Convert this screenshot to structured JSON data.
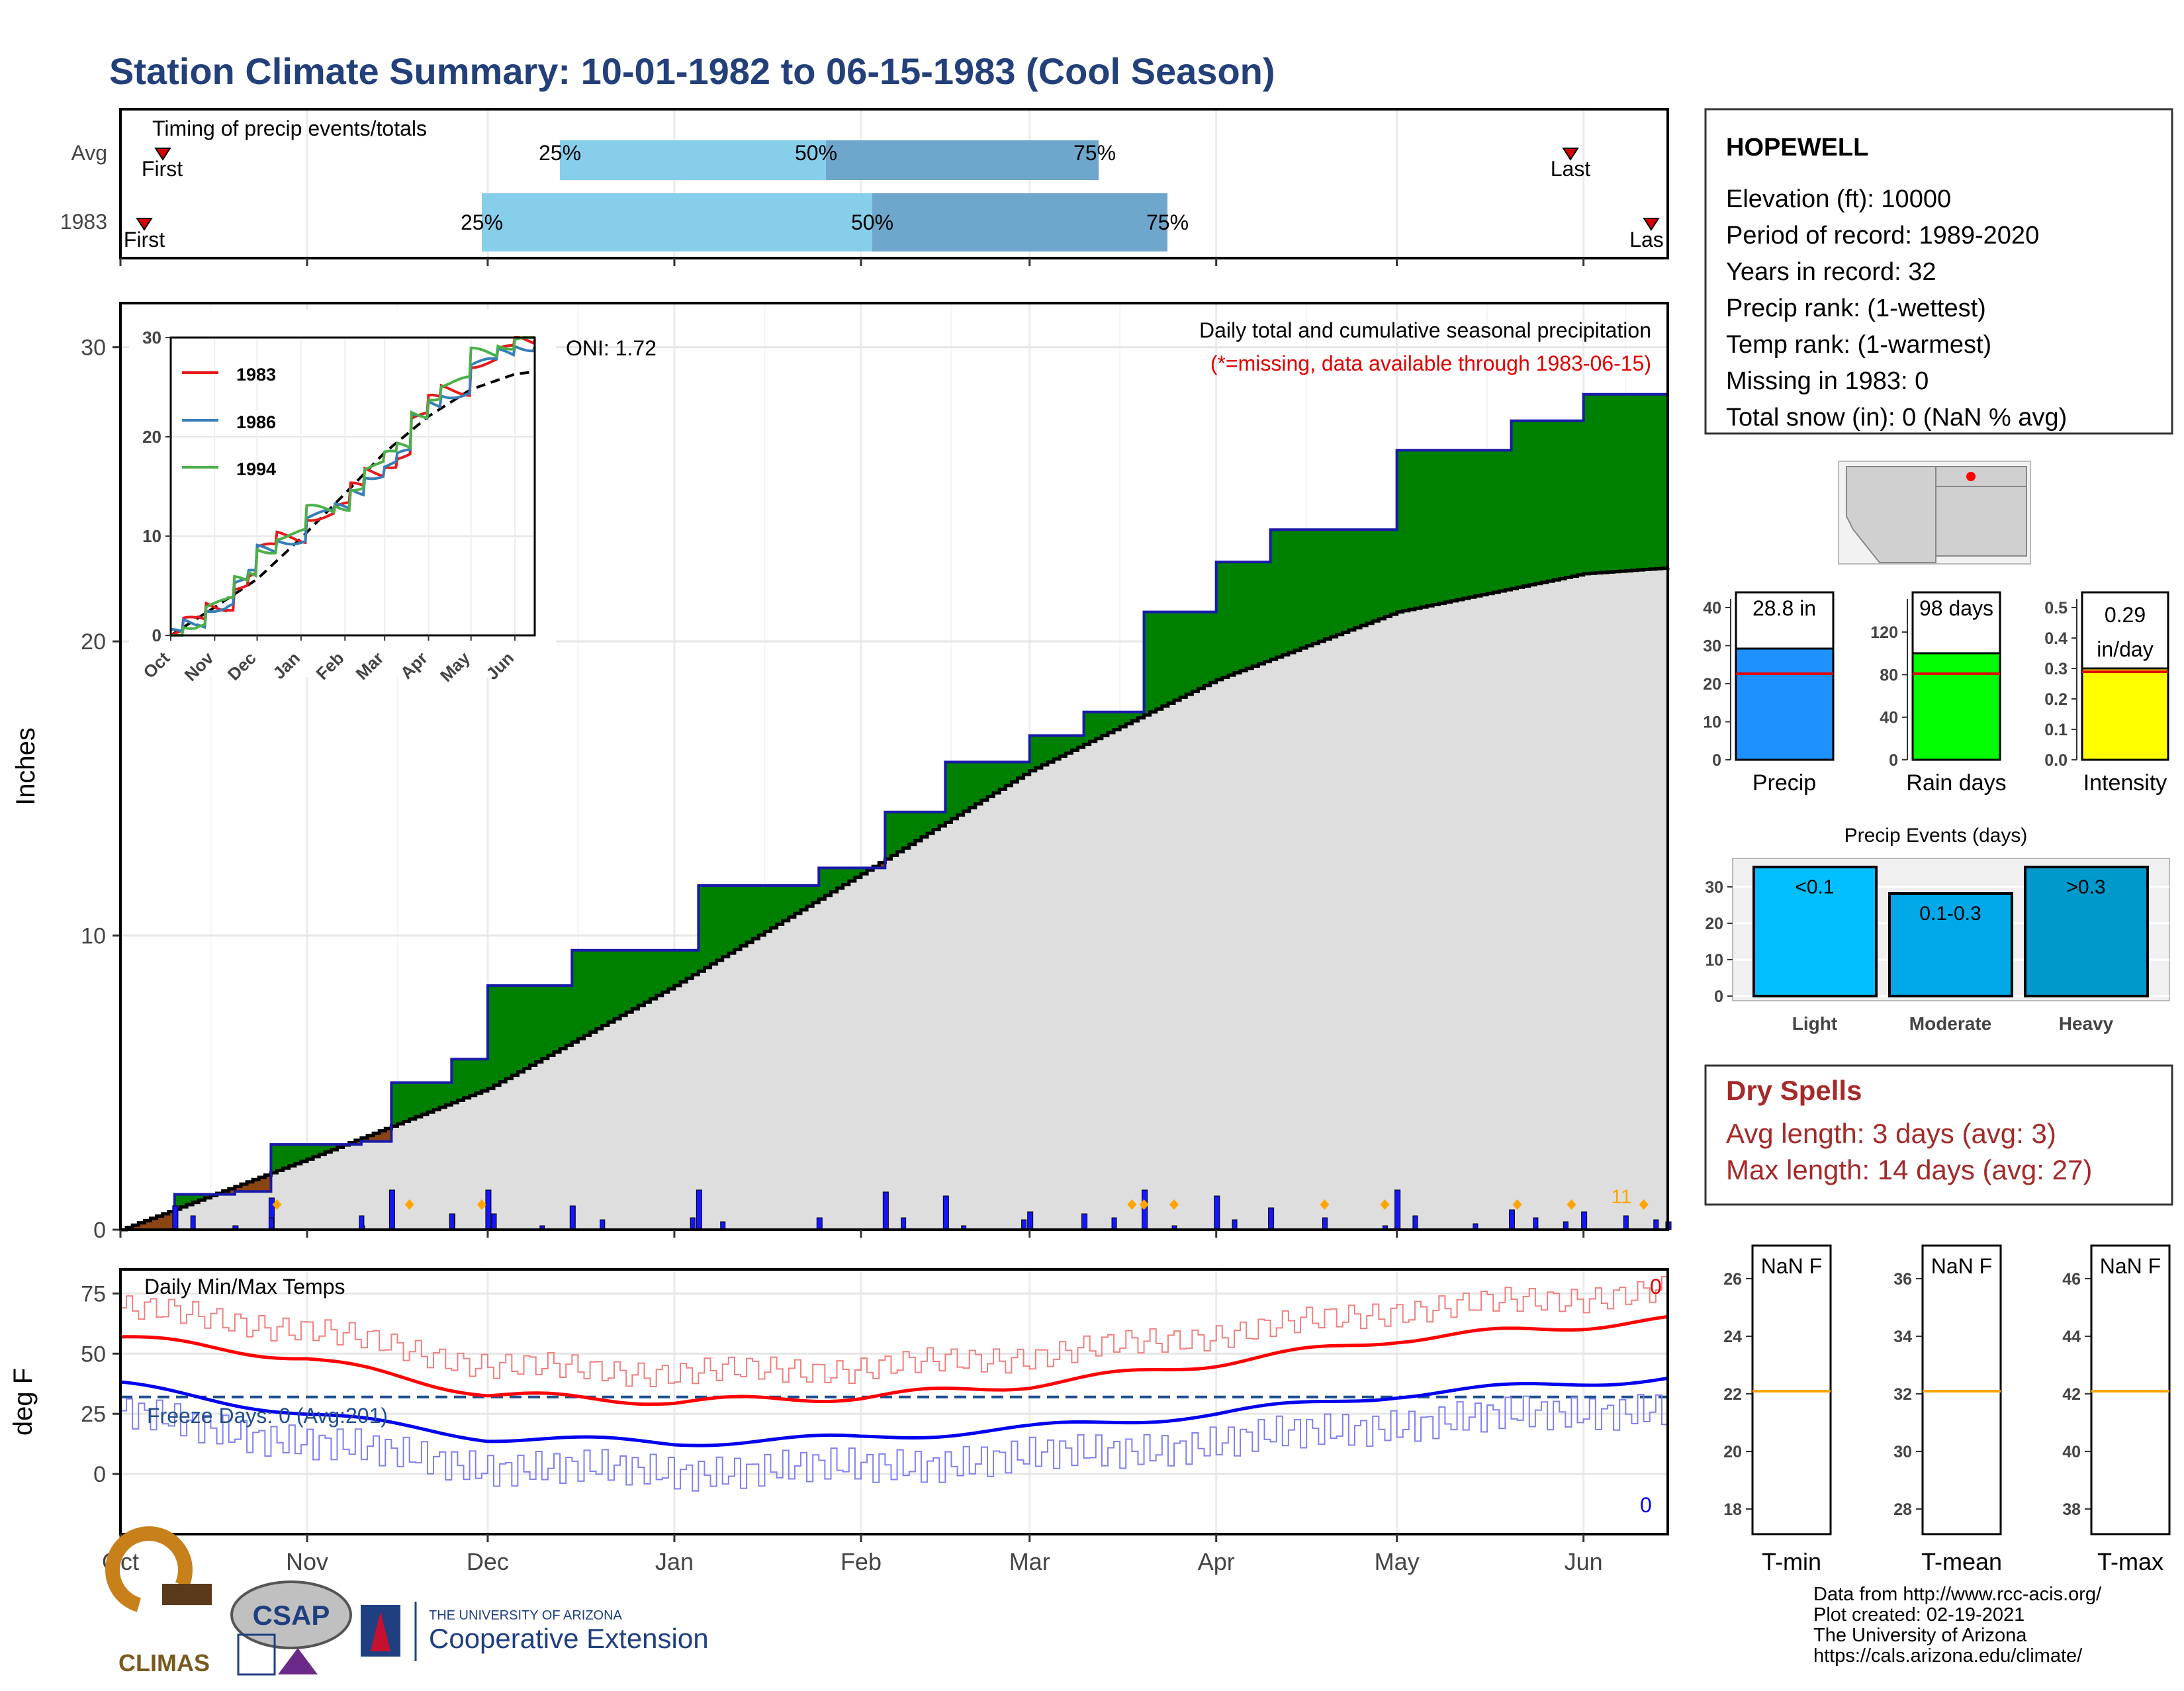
{
  "page": {
    "title": "Station Climate Summary: 10-01-1982 to 06-15-1983 (Cool Season)"
  },
  "timing_panel": {
    "title": "Timing of precip events/totals",
    "row_labels": [
      "Avg",
      "1983"
    ],
    "avg": {
      "first_label": "First",
      "last_label": "Last",
      "q25": "25%",
      "q50": "50%",
      "q75": "75%"
    },
    "y1983": {
      "first_label": "First",
      "last_label": "Las",
      "q25": "25%",
      "q50": "50%",
      "q75": "75%"
    },
    "colors": {
      "light": "#87ceeb",
      "dark": "#6fa6cc",
      "marker": "#d40000"
    }
  },
  "main_panel": {
    "ylabel": "Inches",
    "yticks": [
      "0",
      "10",
      "20",
      "30"
    ],
    "header": "Daily total and cumulative seasonal precipitation",
    "subheader": "(*=missing, data available through 1983-06-15)",
    "oni": "ONI: 1.72",
    "corner_count": "11",
    "colors": {
      "above": "#008000",
      "normal": "#dedede",
      "bars": "#1515ff",
      "outline": "#1a1aaa",
      "marker": "#ffa500"
    }
  },
  "inset": {
    "yticks": [
      "0",
      "10",
      "20",
      "30"
    ],
    "months": [
      "Oct",
      "Nov",
      "Dec",
      "Jan",
      "Feb",
      "Mar",
      "Apr",
      "May",
      "Jun"
    ],
    "legend": [
      {
        "name": "1983",
        "color": "#e41a1c"
      },
      {
        "name": "1986",
        "color": "#377eb8"
      },
      {
        "name": "1994",
        "color": "#4daf4a"
      }
    ]
  },
  "temp_panel": {
    "title": "Daily Min/Max Temps",
    "ylabel": "deg F",
    "yticks": [
      "0",
      "25",
      "50",
      "75"
    ],
    "freeze_label": "Freeze Days: 0 (Avg:201)",
    "max_count": "0",
    "min_count": "0",
    "colors": {
      "max_avg": "#ff0000",
      "min_avg": "#0000ee",
      "max_daily": "#f08080",
      "min_daily": "#8080f0",
      "freeze_line": "#1f4e8c"
    }
  },
  "x_months": [
    "Oct",
    "Nov",
    "Dec",
    "Jan",
    "Feb",
    "Mar",
    "Apr",
    "May",
    "Jun"
  ],
  "station_box": {
    "name": "HOPEWELL",
    "lines": [
      "Elevation (ft): 10000",
      "Period of record: 1989-2020",
      "Years in record: 32",
      "Precip rank:  (1-wettest)",
      "Temp rank:  (1-warmest)",
      "Missing in 1983: 0",
      "Total snow (in): 0 (NaN % avg)"
    ]
  },
  "stat_bars": [
    {
      "name": "Precip",
      "label": "28.8 in",
      "color": "#1e90ff",
      "yticks": [
        "0",
        "10",
        "20",
        "30",
        "40"
      ]
    },
    {
      "name": "Rain days",
      "label": "98 days",
      "color": "#00ff00",
      "yticks": [
        "0",
        "40",
        "80",
        "120"
      ]
    },
    {
      "name": "Intensity",
      "label": "0.29 in/day",
      "label_line1": "0.29",
      "label_line2": "in/day",
      "color": "#ffff00",
      "yticks": [
        "0.0",
        "0.1",
        "0.2",
        "0.3",
        "0.4",
        "0.5"
      ]
    }
  ],
  "events": {
    "title": "Precip Events (days)",
    "yticks": [
      "0",
      "10",
      "20",
      "30"
    ],
    "bars": [
      {
        "category": "Light",
        "label": "<0.1",
        "color": "#00bfff"
      },
      {
        "category": "Moderate",
        "label": "0.1-0.3",
        "color": "#00a8e8"
      },
      {
        "category": "Heavy",
        "label": ">0.3",
        "color": "#0099cc"
      }
    ]
  },
  "dry_spells": {
    "title": "Dry Spells",
    "line1": "Avg length: 3 days (avg: 3)",
    "line2": "Max length: 14 days (avg: 27)"
  },
  "temp_boxes": [
    {
      "name": "T-min",
      "label": "NaN F",
      "yticks": [
        "18",
        "20",
        "22",
        "24",
        "26"
      ]
    },
    {
      "name": "T-mean",
      "label": "NaN F",
      "yticks": [
        "28",
        "30",
        "32",
        "34",
        "36"
      ]
    },
    {
      "name": "T-max",
      "label": "NaN F",
      "yticks": [
        "38",
        "40",
        "42",
        "44",
        "46"
      ]
    }
  ],
  "footer": {
    "lines": [
      "Data from http://www.rcc-acis.org/",
      "Plot created: 02-19-2021",
      "The University of Arizona",
      "https://cals.arizona.edu/climate/"
    ],
    "climas": "CLIMAS",
    "csap": "CSAP",
    "ua_small": "THE UNIVERSITY OF ARIZONA",
    "ua_big": "Cooperative Extension"
  },
  "chart_data": [
    {
      "type": "area",
      "title": "Daily total and cumulative seasonal precipitation",
      "ylabel": "Inches",
      "ylim": [
        0,
        31.5
      ],
      "series": [
        {
          "name": "1983 cumulative",
          "x": [
            "1982-10-01",
            "1982-10-10",
            "1982-10-20",
            "1982-10-26",
            "1982-11-10",
            "1982-11-15",
            "1982-11-25",
            "1982-12-01",
            "1982-12-15",
            "1983-01-05",
            "1983-01-25",
            "1983-02-05",
            "1983-02-15",
            "1983-03-01",
            "1983-03-10",
            "1983-03-20",
            "1983-04-01",
            "1983-04-10",
            "1983-05-01",
            "1983-05-20",
            "1983-06-01",
            "1983-06-15"
          ],
          "values": [
            0,
            1.2,
            1.3,
            2.9,
            3.0,
            5.0,
            5.8,
            8.3,
            9.5,
            11.7,
            12.3,
            14.2,
            15.9,
            16.8,
            17.6,
            21.0,
            22.7,
            23.8,
            26.5,
            27.5,
            28.4,
            28.8
          ]
        },
        {
          "name": "Average cumulative",
          "x": [
            "1982-10-01",
            "1982-11-01",
            "1982-12-01",
            "1983-01-01",
            "1983-02-01",
            "1983-03-01",
            "1983-04-01",
            "1983-05-01",
            "1983-06-01",
            "1983-06-15"
          ],
          "values": [
            0,
            2.4,
            4.8,
            8.3,
            12.1,
            15.6,
            18.7,
            21.0,
            22.3,
            22.5
          ]
        }
      ]
    },
    {
      "type": "line",
      "title": "Daily Min/Max Temps",
      "ylabel": "deg F",
      "ylim": [
        -25,
        85
      ],
      "series": [
        {
          "name": "Avg max",
          "x": [
            "Oct",
            "Nov",
            "Dec",
            "Jan",
            "Feb",
            "Mar",
            "Apr",
            "May",
            "Jun"
          ],
          "values": [
            57,
            48,
            33,
            30,
            32,
            37,
            46,
            56,
            64
          ]
        },
        {
          "name": "Avg min",
          "x": [
            "Oct",
            "Nov",
            "Dec",
            "Jan",
            "Feb",
            "Mar",
            "Apr",
            "May",
            "Jun"
          ],
          "values": [
            37,
            25,
            15,
            13,
            15,
            19,
            25,
            33,
            40
          ]
        },
        {
          "name": "Freeze threshold",
          "values": [
            32
          ]
        }
      ]
    }
  ]
}
